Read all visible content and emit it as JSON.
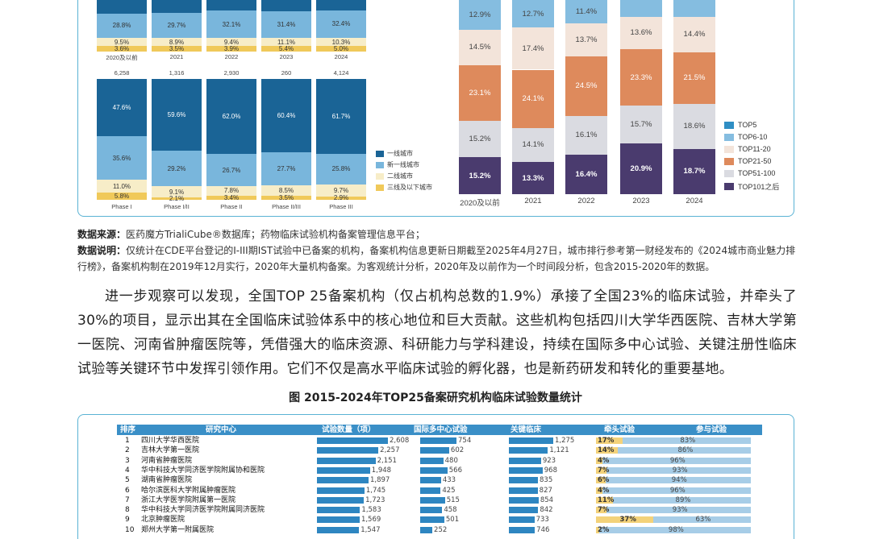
{
  "chart_data": [
    {
      "type": "bar",
      "categories": [
        "2020及以前",
        "2021",
        "2022",
        "2023",
        "2024"
      ],
      "series": [
        {
          "name": "一线城市",
          "values": [
            null,
            null,
            null,
            null,
            null
          ]
        },
        {
          "name": "新一线城市",
          "values": [
            28.8,
            29.7,
            32.1,
            31.4,
            32.4
          ]
        },
        {
          "name": "二线城市",
          "values": [
            9.5,
            8.9,
            9.4,
            11.1,
            10.3
          ]
        },
        {
          "name": "三线及以下城市",
          "values": [
            3.6,
            3.5,
            3.9,
            5.4,
            5.0
          ]
        }
      ]
    },
    {
      "type": "bar",
      "categories": [
        "Phase I",
        "Phase I/II",
        "Phase II",
        "Phase II/III",
        "Phase III"
      ],
      "totals": [
        "6,258",
        "1,316",
        "2,930",
        "260",
        "4,124"
      ],
      "series": [
        {
          "name": "一线城市",
          "values": [
            47.6,
            59.6,
            62.0,
            60.4,
            61.7
          ]
        },
        {
          "name": "新一线城市",
          "values": [
            35.6,
            29.2,
            26.7,
            27.7,
            25.8
          ]
        },
        {
          "name": "二线城市",
          "values": [
            11.0,
            9.1,
            7.8,
            8.5,
            9.7
          ]
        },
        {
          "name": "三线及以下城市",
          "values": [
            5.8,
            2.1,
            3.4,
            3.5,
            2.9
          ]
        }
      ]
    },
    {
      "type": "bar",
      "categories": [
        "2020及以前",
        "2021",
        "2022",
        "2023",
        "2024"
      ],
      "series": [
        {
          "name": "TOP5",
          "values": [
            null,
            null,
            null,
            null,
            null
          ]
        },
        {
          "name": "TOP6-10",
          "values": [
            12.9,
            12.7,
            11.4,
            null,
            null
          ]
        },
        {
          "name": "TOP11-20",
          "values": [
            14.5,
            17.4,
            13.7,
            13.6,
            14.4
          ]
        },
        {
          "name": "TOP21-50",
          "values": [
            23.1,
            24.1,
            24.5,
            23.3,
            21.5
          ]
        },
        {
          "name": "TOP51-100",
          "values": [
            15.2,
            14.1,
            16.1,
            15.7,
            18.6
          ]
        },
        {
          "name": "TOP101之后",
          "values": [
            15.2,
            13.3,
            16.4,
            20.9,
            18.7
          ]
        }
      ]
    },
    {
      "type": "table",
      "columns": [
        "排序",
        "研究中心",
        "试验数量（项）",
        "国际多中心试验",
        "关键临床",
        "牵头试验",
        "参与试验"
      ],
      "rows": [
        {
          "rank": "1",
          "name": "四川大学华西医院",
          "trials": 2608,
          "trials_label": "2,608",
          "intl": 754,
          "intl_label": "754",
          "key": 1275,
          "key_label": "1,275",
          "lead": 17,
          "lead_label": "17%",
          "part": 83,
          "part_label": "83%"
        },
        {
          "rank": "2",
          "name": "吉林大学第一医院",
          "trials": 2257,
          "trials_label": "2,257",
          "intl": 602,
          "intl_label": "602",
          "key": 1121,
          "key_label": "1,121",
          "lead": 14,
          "lead_label": "14%",
          "part": 86,
          "part_label": "86%"
        },
        {
          "rank": "3",
          "name": "河南省肿瘤医院",
          "trials": 2151,
          "trials_label": "2,151",
          "intl": 480,
          "intl_label": "480",
          "key": 923,
          "key_label": "923",
          "lead": 4,
          "lead_label": "4%",
          "part": 96,
          "part_label": "96%"
        },
        {
          "rank": "4",
          "name": "华中科技大学同济医学院附属协和医院",
          "trials": 1948,
          "trials_label": "1,948",
          "intl": 566,
          "intl_label": "566",
          "key": 968,
          "key_label": "968",
          "lead": 7,
          "lead_label": "7%",
          "part": 93,
          "part_label": "93%"
        },
        {
          "rank": "5",
          "name": "湖南省肿瘤医院",
          "trials": 1897,
          "trials_label": "1,897",
          "intl": 433,
          "intl_label": "433",
          "key": 835,
          "key_label": "835",
          "lead": 6,
          "lead_label": "6%",
          "part": 94,
          "part_label": "94%"
        },
        {
          "rank": "6",
          "name": "哈尔滨医科大学附属肿瘤医院",
          "trials": 1745,
          "trials_label": "1,745",
          "intl": 425,
          "intl_label": "425",
          "key": 827,
          "key_label": "827",
          "lead": 4,
          "lead_label": "4%",
          "part": 96,
          "part_label": "96%"
        },
        {
          "rank": "7",
          "name": "浙江大学医学院附属第一医院",
          "trials": 1723,
          "trials_label": "1,723",
          "intl": 515,
          "intl_label": "515",
          "key": 854,
          "key_label": "854",
          "lead": 11,
          "lead_label": "11%",
          "part": 89,
          "part_label": "89%"
        },
        {
          "rank": "8",
          "name": "华中科技大学同济医学院附属同济医院",
          "trials": 1583,
          "trials_label": "1,583",
          "intl": 458,
          "intl_label": "458",
          "key": 842,
          "key_label": "842",
          "lead": 7,
          "lead_label": "7%",
          "part": 93,
          "part_label": "93%"
        },
        {
          "rank": "9",
          "name": "北京肿瘤医院",
          "trials": 1569,
          "trials_label": "1,569",
          "intl": 501,
          "intl_label": "501",
          "key": 733,
          "key_label": "733",
          "lead": 37,
          "lead_label": "37%",
          "part": 63,
          "part_label": "63%"
        },
        {
          "rank": "10",
          "name": "郑州大学第一附属医院",
          "trials": 1547,
          "trials_label": "1,547",
          "intl": 252,
          "intl_label": "252",
          "key": 746,
          "key_label": "746",
          "lead": 2,
          "lead_label": "2%",
          "part": 98,
          "part_label": "98%"
        }
      ]
    }
  ],
  "colors": {
    "tier1": "#1a6496",
    "newtier1": "#79b6dc",
    "tier2": "#f7edc8",
    "tier3": "#f0c95a",
    "top5": "#2f8ec4",
    "top6_10": "#85bde0",
    "top11_20": "#f3e4da",
    "top21_50": "#de8a5c",
    "top51_100": "#dadbe1",
    "top101": "#4a3b6e"
  },
  "source": {
    "label": "数据来源：",
    "text": "医药魔方TrialiCube®数据库；药物临床试验机构备案管理信息平台；"
  },
  "note": {
    "label": "数据说明：",
    "text": "仅统计在CDE平台登记的I-III期IST试验中已备案的机构，备案机构信息更新日期截至2025年4月27日，城市排行参考第一财经发布的《2024城市商业魅力排行榜》，备案机构制在2019年12月实行，2020年大量机构备案。为客观统计分析，2020年及以前作为一个时间段分析，包含2015-2020年的数据。"
  },
  "paragraph": "进一步观察可以发现，全国TOP 25备案机构（仅占机构总数的1.9%）承接了全国23%的临床试验，并牵头了30%的项目，显示出其在全国临床试验体系中的核心地位和巨大贡献。这些机构包括四川大学华西医院、吉林大学第一医院、河南省肿瘤医院等，凭借强大的临床资源、科研能力与学科建设，持续在国际多中心试验、关键注册性临床试验等关键环节中发挥引领作用。它们不仅是高水平临床试验的孵化器，也是新药研发和转化的重要基地。",
  "figure_title": "图 2015-2024年TOP25备案研究机构临床试验数量统计"
}
